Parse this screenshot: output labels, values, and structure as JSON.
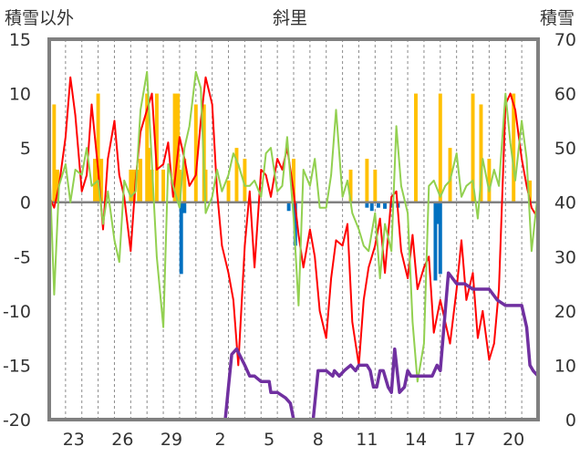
{
  "chart_data": {
    "type": "line",
    "title": "斜里",
    "ylabel_left": "積雪以外",
    "ylabel_right": "積雪",
    "x_tick_labels": [
      "23",
      "26",
      "29",
      "2",
      "5",
      "8",
      "11",
      "14",
      "17",
      "20"
    ],
    "x_day_range": [
      0,
      30
    ],
    "x_tick_days": [
      1.5,
      4.5,
      7.5,
      10.5,
      13.5,
      16.5,
      19.5,
      22.5,
      25.5,
      28.5
    ],
    "ylim_left": [
      -20,
      15
    ],
    "yticks_left": [
      "15",
      "10",
      "5",
      "0",
      "-5",
      "-10",
      "-15",
      "-20"
    ],
    "ylim_right": [
      0,
      70
    ],
    "yticks_right": [
      "70",
      "60",
      "50",
      "40",
      "30",
      "20",
      "10",
      "0"
    ],
    "grid": "vertical dashed",
    "colors": {
      "max_temp": "#ff0000",
      "min_temp": "#92d050",
      "snowfall_bar": "#ffc000",
      "rain_bar": "#0070c0",
      "snow_depth": "#7030a0",
      "zero_line": "#808080"
    },
    "series": [
      {
        "color": "#ff0000",
        "axis": "left",
        "x": [
          0,
          0.3,
          0.6,
          1.0,
          1.3,
          1.6,
          2.0,
          2.3,
          2.6,
          3.0,
          3.3,
          3.6,
          4.0,
          4.3,
          4.6,
          5.0,
          5.3,
          5.6,
          6.0,
          6.3,
          6.6,
          7.0,
          7.3,
          7.6,
          8.0,
          8.3,
          8.6,
          9.0,
          9.3,
          9.6,
          10.0,
          10.3,
          10.6,
          11.0,
          11.3,
          11.6,
          12.0,
          12.3,
          12.6,
          13.0,
          13.3,
          13.6,
          14.0,
          14.3,
          14.6,
          15.0,
          15.3,
          15.6,
          16.0,
          16.3,
          16.6,
          17.0,
          17.3,
          17.6,
          18.0,
          18.3,
          18.6,
          19.0,
          19.3,
          19.6,
          20.0,
          20.3,
          20.6,
          21.0,
          21.3,
          21.6,
          22.0,
          22.3,
          22.6,
          23.0,
          23.3,
          23.6,
          24.0,
          24.3,
          24.6,
          25.0,
          25.3,
          25.6,
          26.0,
          26.3,
          26.6,
          27.0,
          27.3,
          27.6,
          28.0,
          28.3,
          28.6,
          29.0,
          29.3,
          29.6,
          30.0
        ],
        "y": [
          0.5,
          -0.5,
          1.5,
          6.0,
          11.5,
          8.0,
          1.0,
          2.5,
          9.0,
          3.0,
          -2.5,
          4.0,
          7.5,
          2.5,
          0.5,
          -4.5,
          2.0,
          6.5,
          8.5,
          10.0,
          3.0,
          3.5,
          5.5,
          0.5,
          6.0,
          4.0,
          1.5,
          2.5,
          7.5,
          11.5,
          9.0,
          1.0,
          -4.0,
          -6.5,
          -9.0,
          -15.0,
          -4.0,
          1.0,
          -6.0,
          3.0,
          2.5,
          0.5,
          4.0,
          3.0,
          5.0,
          1.0,
          -3.0,
          -6.0,
          -2.5,
          -5.0,
          -10.0,
          -12.5,
          -7.0,
          -3.5,
          -4.0,
          -2.0,
          -11.0,
          -15.0,
          -9.0,
          -6.0,
          -4.0,
          -1.5,
          -6.5,
          0.5,
          1.0,
          -4.5,
          -7.0,
          -3.0,
          -8.0,
          -6.0,
          -5.0,
          -12.0,
          -9.0,
          -11.0,
          -13.0,
          -8.0,
          -3.5,
          -9.0,
          -6.5,
          -12.5,
          -10.0,
          -14.5,
          -13.0,
          -8.0,
          9.0,
          10.0,
          8.5,
          4.0,
          1.5,
          -0.5,
          -1.5
        ]
      },
      {
        "color": "#92d050",
        "axis": "left",
        "x": [
          0,
          0.3,
          0.6,
          1.0,
          1.3,
          1.6,
          2.0,
          2.3,
          2.6,
          3.0,
          3.3,
          3.6,
          4.0,
          4.3,
          4.6,
          5.0,
          5.3,
          5.6,
          6.0,
          6.3,
          6.6,
          7.0,
          7.3,
          7.6,
          8.0,
          8.3,
          8.6,
          9.0,
          9.3,
          9.6,
          10.0,
          10.3,
          10.6,
          11.0,
          11.3,
          11.6,
          12.0,
          12.3,
          12.6,
          13.0,
          13.3,
          13.6,
          14.0,
          14.3,
          14.6,
          15.0,
          15.3,
          15.6,
          16.0,
          16.3,
          16.6,
          17.0,
          17.3,
          17.6,
          18.0,
          18.3,
          18.6,
          19.0,
          19.3,
          19.6,
          20.0,
          20.3,
          20.6,
          21.0,
          21.3,
          21.6,
          22.0,
          22.3,
          22.6,
          23.0,
          23.3,
          23.6,
          24.0,
          24.3,
          24.6,
          25.0,
          25.3,
          25.6,
          26.0,
          26.3,
          26.6,
          27.0,
          27.3,
          27.6,
          28.0,
          28.3,
          28.6,
          29.0,
          29.3,
          29.6,
          30.0
        ],
        "y": [
          4.0,
          -8.5,
          1.5,
          3.5,
          0.0,
          3.0,
          2.5,
          5.0,
          1.5,
          2.0,
          -2.0,
          1.0,
          -3.5,
          -5.5,
          2.0,
          0.5,
          1.0,
          8.5,
          12.0,
          3.5,
          -5.0,
          -11.5,
          3.5,
          1.5,
          -0.5,
          5.0,
          7.0,
          12.0,
          10.5,
          -1.0,
          0.5,
          3.0,
          1.0,
          2.5,
          4.5,
          3.5,
          1.5,
          1.5,
          2.0,
          0.5,
          4.5,
          5.0,
          1.0,
          1.5,
          6.0,
          -1.5,
          -9.5,
          3.0,
          1.5,
          4.0,
          -0.5,
          -0.5,
          2.5,
          8.5,
          0.5,
          2.0,
          -1.0,
          -2.5,
          -4.0,
          -4.5,
          -1.0,
          -7.0,
          -2.0,
          -4.5,
          7.0,
          1.5,
          -1.0,
          -11.0,
          -16.5,
          -13.0,
          1.5,
          2.0,
          0.5,
          1.5,
          2.0,
          4.5,
          0.5,
          1.5,
          2.0,
          -1.5,
          4.0,
          1.0,
          3.0,
          1.5,
          10.0,
          5.5,
          2.0,
          7.5,
          4.0,
          -4.5,
          1.0
        ]
      },
      {
        "color": "#7030a0",
        "axis": "right",
        "x": [
          0,
          4.0,
          8.0,
          10.8,
          11.0,
          11.2,
          11.5,
          12.0,
          12.3,
          12.6,
          13.0,
          13.5,
          13.6,
          14.0,
          14.5,
          14.8,
          15.0,
          15.5,
          15.9,
          16.2,
          16.5,
          16.8,
          17.0,
          17.4,
          17.5,
          17.8,
          18.1,
          18.5,
          18.8,
          19.0,
          19.2,
          19.5,
          19.7,
          19.9,
          20.1,
          20.3,
          20.5,
          20.8,
          21.0,
          21.2,
          21.5,
          21.8,
          22.0,
          22.2,
          22.6,
          23.0,
          23.3,
          23.5,
          23.8,
          24.0,
          24.5,
          25.0,
          25.5,
          26.0,
          26.5,
          27.0,
          27.5,
          28.0,
          28.3,
          28.6,
          29.0,
          29.3,
          29.5,
          29.7,
          30.0
        ],
        "y": [
          0,
          0,
          0,
          0,
          6,
          12,
          13,
          10,
          8,
          8,
          7,
          7,
          5,
          5,
          4,
          3,
          0,
          0,
          0,
          0,
          9,
          9,
          9,
          8,
          9,
          8,
          9,
          10,
          9,
          10,
          10,
          10,
          9,
          6,
          6,
          9,
          9,
          6,
          5,
          13,
          5,
          6,
          9,
          8,
          8,
          8,
          8,
          8,
          10,
          9,
          27,
          25,
          25,
          24,
          24,
          24,
          22,
          21,
          21,
          21,
          21,
          17,
          10,
          9,
          8
        ]
      }
    ],
    "bars": [
      {
        "color": "#ffc000",
        "x": [
          0.3,
          0.5,
          2.8,
          3.0,
          3.2,
          5.0,
          5.2,
          5.5,
          5.6,
          6.0,
          6.1,
          6.3,
          6.6,
          7.0,
          7.7,
          7.8,
          7.9,
          8.0,
          8.3,
          9.0,
          9.5,
          9.6,
          11.0,
          11.5,
          12.0,
          15.0,
          18.5,
          19.5,
          20.0,
          22.5,
          24.0,
          24.6,
          26.0,
          26.5,
          27.0,
          28.5,
          29.5
        ],
        "values": [
          9,
          3,
          4,
          10,
          4,
          3,
          3,
          3,
          4,
          10,
          5,
          3,
          10,
          3,
          10,
          5,
          10,
          3,
          4,
          9,
          9,
          3,
          2,
          5,
          4,
          4,
          3,
          4,
          3,
          10,
          10,
          5,
          10,
          9,
          4,
          10,
          2
        ]
      },
      {
        "color": "#0070c0",
        "x": [
          8.1,
          8.3,
          14.7,
          15.1,
          19.5,
          19.8,
          20.2,
          20.6,
          21.0,
          21.4,
          23.7,
          23.8,
          24.0
        ],
        "values": [
          -6.6,
          -1.0,
          -0.8,
          -4.0,
          -0.5,
          -0.8,
          -0.5,
          -0.6,
          -0.5,
          -0.5,
          -7.2,
          -2.0,
          -6.6
        ]
      }
    ]
  }
}
